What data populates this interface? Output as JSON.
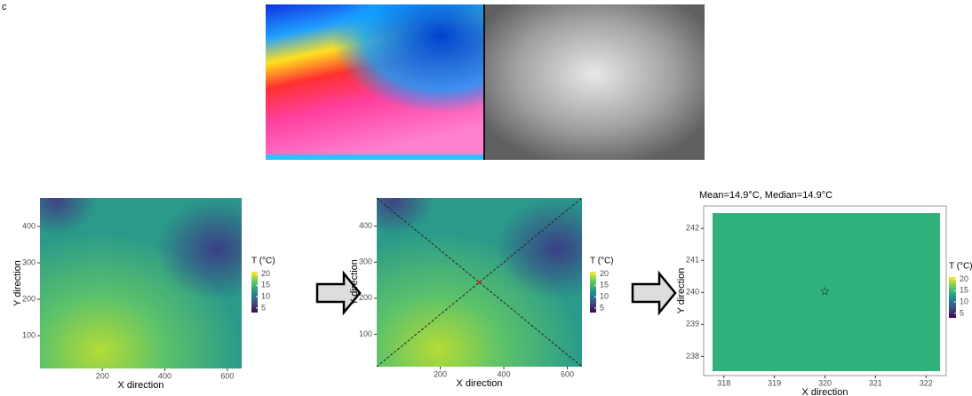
{
  "label": "c",
  "panels": [
    {
      "xlabel": "X direction",
      "ylabel": "Y direction",
      "xlim": [
        0,
        646
      ],
      "ylim": [
        10,
        478
      ],
      "xticks": [
        200,
        400,
        600
      ],
      "yticks": [
        100,
        200,
        300,
        400
      ],
      "legend_title": "T (°C)",
      "legend_lim": [
        3,
        21
      ],
      "legend_ticks": [
        5,
        10,
        15,
        20
      ]
    },
    {
      "xlabel": "X direction",
      "ylabel": "Y direction",
      "xlim": [
        0,
        646
      ],
      "ylim": [
        10,
        478
      ],
      "xticks": [
        200,
        400,
        600
      ],
      "yticks": [
        100,
        200,
        300,
        400
      ],
      "legend_title": "T (°C)",
      "legend_lim": [
        3,
        21
      ],
      "legend_ticks": [
        5,
        10,
        15,
        20
      ]
    },
    {
      "title": "Mean=14.9°C, Median=14.9°C",
      "xlabel": "X direction",
      "ylabel": "Y direction",
      "xlim": [
        317.6,
        322.4
      ],
      "ylim": [
        237.4,
        242.7
      ],
      "xticks": [
        318,
        319,
        320,
        321,
        322
      ],
      "yticks": [
        238,
        239,
        240,
        241,
        242
      ],
      "marker": [
        320,
        240
      ],
      "legend_title": "T (°C)",
      "legend_lim": [
        3,
        21
      ],
      "legend_ticks": [
        5,
        10,
        15,
        20
      ]
    }
  ]
}
